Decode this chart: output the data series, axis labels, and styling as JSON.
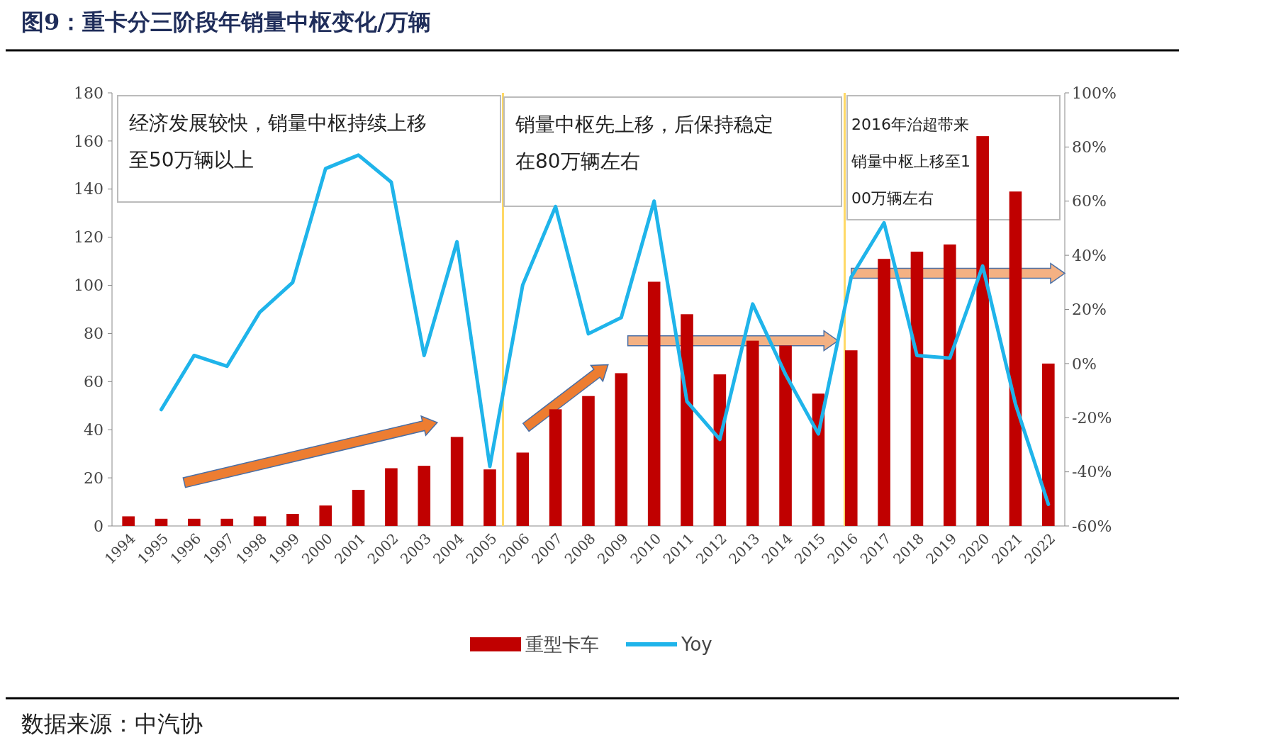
{
  "chart_data": {
    "type": "bar",
    "title": "图9：重卡分三阶段年销量中枢变化/万辆",
    "x": [
      1994,
      1995,
      1996,
      1997,
      1998,
      1999,
      2000,
      2001,
      2002,
      2003,
      2004,
      2005,
      2006,
      2007,
      2008,
      2009,
      2010,
      2011,
      2012,
      2013,
      2014,
      2015,
      2016,
      2017,
      2018,
      2019,
      2020,
      2021,
      2022
    ],
    "xlim": [
      1993.5,
      2022.5
    ],
    "xticks": [
      1994,
      1995,
      1996,
      1997,
      1998,
      1999,
      2000,
      2001,
      2002,
      2003,
      2004,
      2005,
      2006,
      2007,
      2008,
      2009,
      2010,
      2011,
      2012,
      2013,
      2014,
      2015,
      2016,
      2017,
      2018,
      2019,
      2020,
      2021,
      2022
    ],
    "series": [
      {
        "name": "重型卡车",
        "color": "#c00000",
        "values": [
          4,
          3,
          3,
          3,
          4,
          5,
          8.5,
          15,
          24,
          25,
          37,
          23.5,
          30.5,
          48.5,
          54,
          63.5,
          101.5,
          88,
          63,
          77,
          75,
          55,
          73,
          111,
          114,
          117,
          162,
          139,
          67.5
        ]
      },
      {
        "name": "Yoy",
        "type": "line",
        "axis": "y2",
        "color": "#1fb4ea",
        "values": [
          null,
          -17,
          3,
          -1,
          19,
          30,
          72,
          77,
          67,
          3,
          45,
          -38,
          29,
          58,
          11,
          17,
          60,
          -14,
          -28,
          22,
          -4,
          -26,
          32,
          52,
          3,
          2,
          36,
          -15,
          -52
        ]
      }
    ],
    "ylim": [
      0,
      180
    ],
    "yticks": [
      0,
      20,
      40,
      60,
      80,
      100,
      120,
      140,
      160,
      180
    ],
    "y2lim": [
      -60,
      100
    ],
    "y2ticks": [
      {
        "value": -60,
        "label": "-60%"
      },
      {
        "value": -40,
        "label": "-40%"
      },
      {
        "value": -20,
        "label": "-20%"
      },
      {
        "value": 0,
        "label": "0%"
      },
      {
        "value": 20,
        "label": "20%"
      },
      {
        "value": 40,
        "label": "40%"
      },
      {
        "value": 60,
        "label": "60%"
      },
      {
        "value": 80,
        "label": "80%"
      },
      {
        "value": 100,
        "label": "100%"
      }
    ],
    "ref_lines": [
      {
        "axis": "x",
        "value": 2005.4,
        "color": "#ffd966"
      },
      {
        "axis": "x",
        "value": 2015.8,
        "color": "#ffd966"
      }
    ],
    "annotations": [
      "经济发展较快，销量中枢持续上移至50万辆以上",
      "销量中枢先上移，后保持稳定在80万辆左右",
      "2016年治超带来销量中枢上移至100万辆左右",
      "数据来源：中汽协"
    ],
    "legend": "bottom"
  }
}
